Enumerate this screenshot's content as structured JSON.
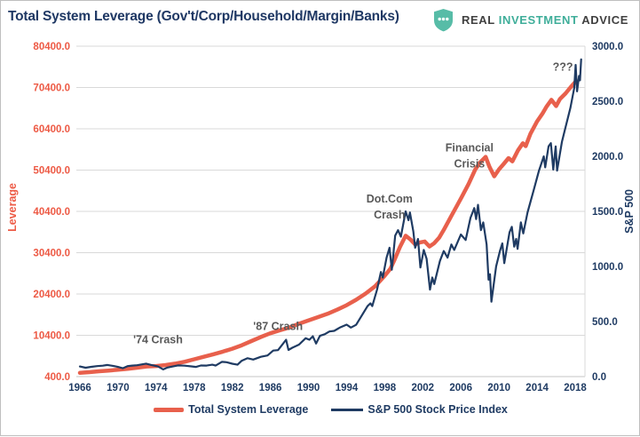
{
  "header": {
    "title": "Total System Leverage (Gov't/Corp/Household/Margin/Banks)",
    "logo": {
      "word1": "REAL",
      "word2": "INVESTMENT",
      "word3": "ADVICE",
      "shield_color": "#57bca7",
      "teal_text_color": "#3fae9a",
      "dark_text_color": "#404040"
    }
  },
  "chart_data": {
    "type": "line",
    "title": "Total System Leverage (Gov't/Corp/Household/Margin/Banks)",
    "grid": "horizontal-only",
    "legend_position": "bottom-center",
    "x_axis": {
      "ticks": [
        1966,
        1970,
        1974,
        1978,
        1982,
        1986,
        1990,
        1994,
        1998,
        2002,
        2006,
        2010,
        2014,
        2018
      ],
      "range": [
        1965.6,
        2019.0
      ]
    },
    "left_axis": {
      "label": "Leverage",
      "min": 400,
      "max": 80400,
      "tick_step": 10000,
      "values": [
        400,
        10400,
        20400,
        30400,
        40400,
        50400,
        60400,
        70400,
        80400
      ],
      "labels": [
        "400.0",
        "10400.0",
        "20400.0",
        "30400.0",
        "40400.0",
        "50400.0",
        "60400.0",
        "70400.0",
        "80400.0"
      ],
      "color": "#ed5a45"
    },
    "right_axis": {
      "label": "S&P 500",
      "min": 0,
      "max": 3000,
      "tick_step": 500,
      "values": [
        0,
        500,
        1000,
        1500,
        2000,
        2500,
        3000
      ],
      "labels": [
        "0.0",
        "500.0",
        "1000.0",
        "1500.0",
        "2000.0",
        "2500.0",
        "3000.0"
      ],
      "color": "#1f3b63"
    },
    "series": [
      {
        "name": "Total System Leverage",
        "axis": "left",
        "color": "#e8604c",
        "width": 4.5,
        "points": [
          [
            1966,
            1300
          ],
          [
            1967,
            1480
          ],
          [
            1968,
            1680
          ],
          [
            1969,
            1860
          ],
          [
            1970,
            2050
          ],
          [
            1971,
            2280
          ],
          [
            1972,
            2550
          ],
          [
            1973,
            2850
          ],
          [
            1974,
            2950
          ],
          [
            1975,
            3200
          ],
          [
            1976,
            3550
          ],
          [
            1977,
            4000
          ],
          [
            1978,
            4600
          ],
          [
            1979,
            5200
          ],
          [
            1980,
            5800
          ],
          [
            1981,
            6450
          ],
          [
            1982,
            7150
          ],
          [
            1983,
            8000
          ],
          [
            1984,
            9000
          ],
          [
            1985,
            10000
          ],
          [
            1986,
            10900
          ],
          [
            1987,
            11600
          ],
          [
            1988,
            12300
          ],
          [
            1989,
            13200
          ],
          [
            1990,
            14000
          ],
          [
            1991,
            14800
          ],
          [
            1992,
            15600
          ],
          [
            1993,
            16600
          ],
          [
            1994,
            17700
          ],
          [
            1995,
            19000
          ],
          [
            1996,
            20500
          ],
          [
            1997,
            22300
          ],
          [
            1998,
            24800
          ],
          [
            1998.6,
            26500
          ],
          [
            1999,
            28500
          ],
          [
            1999.6,
            31800
          ],
          [
            2000.2,
            34500
          ],
          [
            2000.7,
            33600
          ],
          [
            2001.2,
            32400
          ],
          [
            2001.7,
            32900
          ],
          [
            2002.2,
            33100
          ],
          [
            2002.7,
            31900
          ],
          [
            2003.2,
            32700
          ],
          [
            2003.7,
            34000
          ],
          [
            2004.2,
            35900
          ],
          [
            2005,
            39300
          ],
          [
            2006,
            43500
          ],
          [
            2006.8,
            47000
          ],
          [
            2007.5,
            50500
          ],
          [
            2008,
            52200
          ],
          [
            2008.6,
            53600
          ],
          [
            2009,
            51200
          ],
          [
            2009.5,
            48900
          ],
          [
            2010,
            50600
          ],
          [
            2010.5,
            51900
          ],
          [
            2011,
            53300
          ],
          [
            2011.4,
            52500
          ],
          [
            2012,
            55200
          ],
          [
            2012.5,
            56900
          ],
          [
            2012.8,
            56200
          ],
          [
            2013.3,
            59200
          ],
          [
            2014,
            62200
          ],
          [
            2014.6,
            64200
          ],
          [
            2015,
            65800
          ],
          [
            2015.5,
            67400
          ],
          [
            2016,
            65900
          ],
          [
            2016.4,
            67600
          ],
          [
            2017,
            69000
          ],
          [
            2017.5,
            70400
          ],
          [
            2018.1,
            72000
          ]
        ]
      },
      {
        "name": "S&P 500 Stock Price Index",
        "axis": "right",
        "color": "#1f3b63",
        "width": 2.2,
        "points": [
          [
            1966,
            92
          ],
          [
            1966.6,
            81
          ],
          [
            1967.2,
            89
          ],
          [
            1967.8,
            95
          ],
          [
            1968.4,
            99
          ],
          [
            1968.9,
            106
          ],
          [
            1969.4,
            98
          ],
          [
            1970,
            88
          ],
          [
            1970.5,
            76
          ],
          [
            1971,
            95
          ],
          [
            1971.5,
            100
          ],
          [
            1972,
            103
          ],
          [
            1972.95,
            118
          ],
          [
            1973.5,
            106
          ],
          [
            1974.2,
            92
          ],
          [
            1974.75,
            65
          ],
          [
            1975.2,
            82
          ],
          [
            1975.7,
            91
          ],
          [
            1976.3,
            102
          ],
          [
            1977,
            99
          ],
          [
            1977.7,
            93
          ],
          [
            1978.2,
            88
          ],
          [
            1978.7,
            101
          ],
          [
            1979.3,
            100
          ],
          [
            1979.9,
            108
          ],
          [
            1980.25,
            100
          ],
          [
            1980.9,
            134
          ],
          [
            1981.4,
            131
          ],
          [
            1982,
            117
          ],
          [
            1982.55,
            108
          ],
          [
            1983,
            144
          ],
          [
            1983.6,
            167
          ],
          [
            1984.2,
            155
          ],
          [
            1985,
            180
          ],
          [
            1985.7,
            192
          ],
          [
            1986.3,
            236
          ],
          [
            1986.8,
            240
          ],
          [
            1987.2,
            285
          ],
          [
            1987.65,
            335
          ],
          [
            1987.9,
            242
          ],
          [
            1988.3,
            262
          ],
          [
            1989,
            290
          ],
          [
            1989.7,
            348
          ],
          [
            1990.1,
            335
          ],
          [
            1990.45,
            366
          ],
          [
            1990.8,
            300
          ],
          [
            1991.2,
            370
          ],
          [
            1991.7,
            385
          ],
          [
            1992.2,
            410
          ],
          [
            1992.7,
            415
          ],
          [
            1993.3,
            445
          ],
          [
            1994,
            472
          ],
          [
            1994.45,
            445
          ],
          [
            1995,
            470
          ],
          [
            1995.6,
            555
          ],
          [
            1996.2,
            640
          ],
          [
            1996.5,
            665
          ],
          [
            1996.7,
            640
          ],
          [
            1997.2,
            790
          ],
          [
            1997.6,
            950
          ],
          [
            1997.8,
            900
          ],
          [
            1998.2,
            1080
          ],
          [
            1998.5,
            1170
          ],
          [
            1998.75,
            970
          ],
          [
            1999.1,
            1280
          ],
          [
            1999.4,
            1330
          ],
          [
            1999.7,
            1270
          ],
          [
            2000.2,
            1500
          ],
          [
            2000.5,
            1420
          ],
          [
            2000.65,
            1490
          ],
          [
            2001,
            1320
          ],
          [
            2001.2,
            1170
          ],
          [
            2001.5,
            1250
          ],
          [
            2001.75,
            990
          ],
          [
            2002.1,
            1150
          ],
          [
            2002.4,
            1070
          ],
          [
            2002.75,
            790
          ],
          [
            2003,
            900
          ],
          [
            2003.2,
            840
          ],
          [
            2003.8,
            1050
          ],
          [
            2004.2,
            1140
          ],
          [
            2004.6,
            1080
          ],
          [
            2005,
            1200
          ],
          [
            2005.3,
            1150
          ],
          [
            2006,
            1290
          ],
          [
            2006.5,
            1240
          ],
          [
            2007,
            1440
          ],
          [
            2007.4,
            1530
          ],
          [
            2007.6,
            1430
          ],
          [
            2007.8,
            1560
          ],
          [
            2008.1,
            1330
          ],
          [
            2008.35,
            1400
          ],
          [
            2008.7,
            1200
          ],
          [
            2008.9,
            880
          ],
          [
            2009.05,
            930
          ],
          [
            2009.2,
            680
          ],
          [
            2009.7,
            1000
          ],
          [
            2010.1,
            1140
          ],
          [
            2010.35,
            1210
          ],
          [
            2010.55,
            1030
          ],
          [
            2011.1,
            1310
          ],
          [
            2011.35,
            1360
          ],
          [
            2011.6,
            1180
          ],
          [
            2011.8,
            1250
          ],
          [
            2011.95,
            1160
          ],
          [
            2012.3,
            1400
          ],
          [
            2012.55,
            1300
          ],
          [
            2013,
            1490
          ],
          [
            2013.6,
            1680
          ],
          [
            2014.2,
            1870
          ],
          [
            2014.7,
            2000
          ],
          [
            2014.85,
            1900
          ],
          [
            2015.2,
            2090
          ],
          [
            2015.45,
            2120
          ],
          [
            2015.7,
            1880
          ],
          [
            2015.95,
            2090
          ],
          [
            2016.1,
            1870
          ],
          [
            2016.6,
            2130
          ],
          [
            2017,
            2270
          ],
          [
            2017.5,
            2440
          ],
          [
            2017.9,
            2620
          ],
          [
            2018.05,
            2830
          ],
          [
            2018.2,
            2590
          ],
          [
            2018.4,
            2730
          ],
          [
            2018.5,
            2690
          ],
          [
            2018.62,
            2880
          ]
        ]
      }
    ],
    "annotations": [
      {
        "text": "'74 Crash",
        "x_year": 1974.2,
        "y_leverage": 9300
      },
      {
        "text": "'87 Crash",
        "x_year": 1986.8,
        "y_leverage": 12600
      },
      {
        "text": "Dot.Com\nCrash",
        "x_year": 1998.5,
        "y_leverage": 41500
      },
      {
        "text": "Financial\nCrisis",
        "x_year": 2006.9,
        "y_leverage": 53800
      },
      {
        "text": "???",
        "x_year": 2016.7,
        "y_leverage": 75300
      }
    ]
  }
}
